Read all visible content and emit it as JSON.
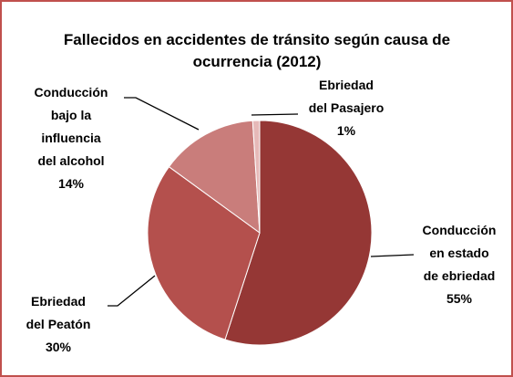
{
  "chart_data": {
    "type": "pie",
    "title": "Fallecidos en accidentes de tránsito según causa de ocurrencia (2012)",
    "categories": [
      "Conducción en estado de ebriedad",
      "Ebriedad del Peatón",
      "Conducción bajo la influencia del alcohol",
      "Ebriedad del Pasajero"
    ],
    "values": [
      55,
      30,
      14,
      1
    ],
    "value_labels": [
      "55%",
      "30%",
      "14%",
      "1%"
    ],
    "colors": [
      "#953735",
      "#b4504d",
      "#c97d7b",
      "#e6b9b8"
    ]
  }
}
